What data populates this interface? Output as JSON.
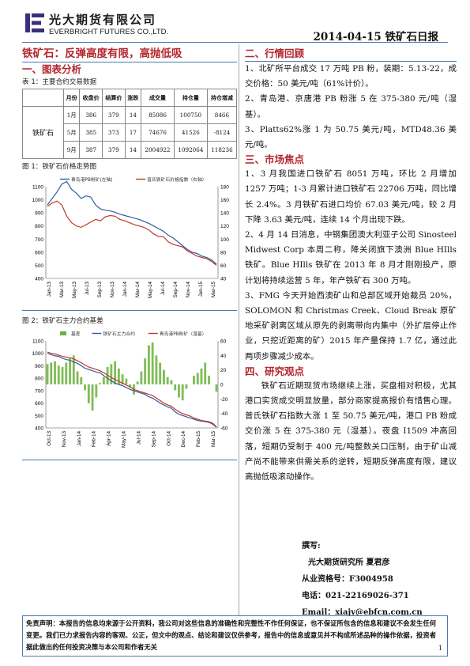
{
  "header": {
    "company_cn": "光大期货有限公司",
    "company_en": "EVERBRIGHT FUTURES CO.,LTD.",
    "report_title": "2014-04-15  铁矿石日报"
  },
  "left": {
    "main_title": "铁矿石：反弹高度有限，高抛低吸",
    "section1": "一、图表分析",
    "table_caption": "表 1：主要合约交易数据",
    "table": {
      "headers": [
        "",
        "月份",
        "收盘价",
        "结算价",
        "涨跌",
        "成交量",
        "持仓量",
        "持仓增减"
      ],
      "product": "铁矿石",
      "rows": [
        [
          "1月",
          "386",
          "379",
          "14",
          "85086",
          "100750",
          "8466"
        ],
        [
          "5月",
          "385",
          "373",
          "17",
          "74676",
          "41526",
          "-8124"
        ],
        [
          "9月",
          "387",
          "379",
          "14",
          "2004922",
          "1092064",
          "118236"
        ]
      ]
    },
    "fig1_caption": "图 1：铁矿石价格走势图",
    "fig2_caption": "图 2：铁矿石主力合约基差"
  },
  "chart_data": [
    {
      "type": "line",
      "title": "",
      "series": [
        {
          "name": "青岛港PB粉矿(左轴)",
          "axis": "left",
          "color": "#2e5d9e",
          "values": [
            960,
            1010,
            1060,
            1120,
            1140,
            1080,
            1050,
            1010,
            1030,
            1020,
            960,
            930,
            920,
            915,
            905,
            890,
            880,
            870,
            860,
            850,
            835,
            820,
            800,
            780,
            760,
            730,
            710,
            680,
            650,
            620,
            600,
            590,
            570,
            560,
            540,
            510
          ]
        },
        {
          "name": "普氏铁矿石价格指数（右轴）",
          "axis": "right",
          "color": "#c0392b",
          "values": [
            150,
            155,
            158,
            152,
            135,
            125,
            120,
            118,
            122,
            126,
            130,
            128,
            134,
            136,
            135,
            130,
            128,
            125,
            122,
            120,
            118,
            114,
            108,
            104,
            104,
            96,
            92,
            90,
            88,
            82,
            78,
            74,
            72,
            70,
            66,
            60
          ]
        }
      ],
      "xlabels": [
        "Jan-13",
        "Mar-13",
        "May-13",
        "Jul-13",
        "Sep-13",
        "Nov-13",
        "Jan-14",
        "Mar-14",
        "May-14",
        "Jul-14",
        "Sep-14",
        "Nov-14",
        "Jan-15",
        "Mar-15"
      ],
      "ylim_left": [
        400,
        1100
      ],
      "yticks_left": [
        400,
        500,
        600,
        700,
        800,
        900,
        1000,
        1100
      ],
      "ylim_right": [
        40,
        180
      ],
      "yticks_right": [
        40,
        60,
        80,
        100,
        120,
        140,
        160,
        180
      ]
    },
    {
      "type": "line",
      "title": "",
      "series": [
        {
          "name": "基差",
          "axis": "right",
          "color": "#6ab23a",
          "kind": "bar",
          "values": [
            28,
            30,
            32,
            26,
            24,
            30,
            36,
            40,
            18,
            10,
            -8,
            -26,
            -36,
            -18,
            2,
            10,
            24,
            28,
            32,
            22,
            14,
            8,
            -4,
            -14,
            4,
            18,
            36,
            54,
            58,
            40,
            30,
            20,
            10,
            6,
            -8,
            -18,
            -22,
            -6,
            0,
            12,
            16,
            22,
            30,
            12,
            0,
            -10
          ]
        },
        {
          "name": "铁矿石主力合约",
          "axis": "left",
          "color": "#2e5d9e",
          "values": [
            1000,
            990,
            980,
            975,
            960,
            950,
            945,
            930,
            920,
            900,
            880,
            870,
            860,
            850,
            845,
            820,
            800,
            780,
            760,
            750,
            740,
            725,
            710,
            700,
            690,
            680,
            670,
            650,
            640,
            620,
            600,
            585,
            570,
            560,
            530,
            510,
            500,
            490,
            480,
            470,
            460,
            455,
            450,
            445,
            430,
            405
          ]
        },
        {
          "name": "青岛港PB粉矿（湿基）",
          "axis": "left",
          "color": "#c0392b",
          "values": [
            1010,
            1000,
            995,
            985,
            975,
            970,
            965,
            955,
            940,
            925,
            905,
            890,
            880,
            870,
            860,
            845,
            825,
            805,
            790,
            775,
            760,
            745,
            730,
            710,
            700,
            690,
            680,
            670,
            660,
            640,
            620,
            600,
            585,
            575,
            550,
            530,
            515,
            505,
            495,
            480,
            470,
            460,
            455,
            450,
            438,
            410
          ]
        }
      ],
      "xlabels": [
        "Oct-13",
        "Nov-13",
        "Jan-14",
        "Feb-14",
        "Apr-14",
        "May-14",
        "Jul-14",
        "Sep-14",
        "Oct-14",
        "Dec-14",
        "Feb-15",
        "Mar-15"
      ],
      "ylim_left": [
        400,
        1100
      ],
      "yticks_left": [
        400,
        500,
        600,
        700,
        800,
        900,
        1000,
        1100
      ],
      "ylim_right": [
        -60,
        60
      ],
      "yticks_right": [
        -60,
        -40,
        -20,
        0,
        20,
        40,
        60
      ]
    }
  ],
  "right": {
    "section2": "二、行情回顾",
    "p2_1": "1、北矿所平台成交 17 万吨 PB 粉，装期：5.13-22，成交价格：50 美元/吨（61%计价）。",
    "p2_2": "2、青岛港、京唐港 PB 粉涨 5 在 375-380 元/吨（湿基）。",
    "p2_3": "3、Platts62%涨 1 为 50.75 美元/吨，MTD48.36 美元/吨。",
    "section3": "三、市场焦点",
    "p3_1": "1、3 月我国进口铁矿石 8051 万吨，环比 2 月增加 1257 万吨；1-3 月累计进口铁矿石 22706 万吨，同比增长 2.4%。3 月铁矿石进口均价 67.03 美元/吨，较 2 月下降 3.63 美元/吨，连续 14 个月出现下跌。",
    "p3_2": "2、4 月 14 日消息，中钢集团澳大利亚子公司 Sinosteel Midwest Corp 本周二称，降关闭旗下澳洲 Blue HIlls 铁矿。Blue HIlls 铁矿在 2013 年 8 月才刚刚投产，原计划将持续运营 5 年，年产铁矿石 300 万吨。",
    "p3_3": "3、FMG 今天开始西澳矿山和总部区域开始裁员 20%，SOLOMON 和 Christmas Creek、Cloud Break 原矿地采矿剥离区域从原先的剥离带向内集中（外扩层停止作业，只挖近距离的矿）2015 年产量保持 1.7 亿，通过此两项步骤减少成本。",
    "section4": "四、研究观点",
    "p4": "铁矿石近期现货市场继续上涨，买盘相对积极，尤其港口实货成交明显放量，部分商家提高报价有惜售心理。普氏铁矿石指数大涨 1 至 50.75 美元/吨，港口 PB 粉成交价涨 5 在 375-380 元（湿基）。夜盘 I1509 冲高回落，短期仍受制于 400 元/吨整数关口压制，由于矿山减产尚不能带来供需关系的逆转，短期反弹高度有限，建议高抛低吸滚动操作。"
  },
  "author": {
    "label": "撰写:",
    "org": "光大期货研究所  夏君彦",
    "cert": "从业资格号：F3004958",
    "phone": "电话：021-22169026-371",
    "email": "Email：xiajy@ebfcn.com.cn"
  },
  "disclaimer": "免责声明：本报告的信息均来源于公开资料，我公司对这些信息的准确性和完整性不作任何保证，也不保证所包含的信息和建议不会发生任何变更。我们已力求报告内容的客观、公正，但文中的观点、结论和建议仅供参考，报告中的信息或意见并不构成所述品种的操作依据，投资者据此做出的任何投资决策与本公司和作者无关",
  "page_number": "1"
}
